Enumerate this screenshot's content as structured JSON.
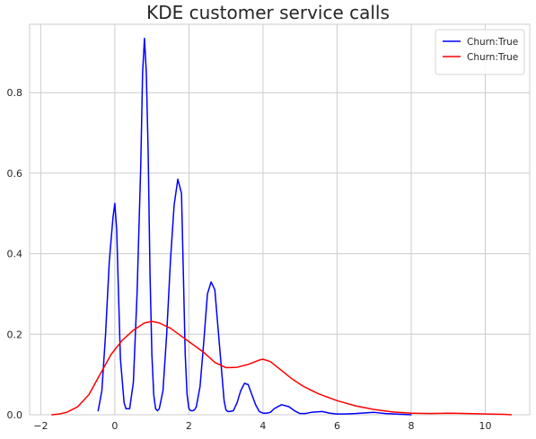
{
  "chart_data": {
    "type": "line",
    "title": "KDE customer service calls",
    "xlabel": "",
    "ylabel": "",
    "xlim": [
      -2.3,
      11.2
    ],
    "ylim": [
      0,
      0.97
    ],
    "x_ticks": [
      -2,
      0,
      2,
      4,
      6,
      8,
      10
    ],
    "x_tick_labels": [
      "−2",
      "0",
      "2",
      "4",
      "6",
      "8",
      "10"
    ],
    "y_ticks": [
      0.0,
      0.2,
      0.4,
      0.6,
      0.8
    ],
    "y_tick_labels": [
      "0.0",
      "0.2",
      "0.4",
      "0.6",
      "0.8"
    ],
    "grid": true,
    "legend_position": "top-right",
    "series": [
      {
        "name": "Churn:True",
        "color": "#0000ff",
        "x": [
          -0.45,
          -0.35,
          -0.25,
          -0.15,
          -0.05,
          0.0,
          0.05,
          0.1,
          0.15,
          0.25,
          0.3,
          0.4,
          0.5,
          0.6,
          0.7,
          0.75,
          0.8,
          0.85,
          0.9,
          0.95,
          1.0,
          1.05,
          1.1,
          1.15,
          1.2,
          1.3,
          1.4,
          1.5,
          1.6,
          1.7,
          1.8,
          1.85,
          1.9,
          1.95,
          2.0,
          2.05,
          2.1,
          2.15,
          2.2,
          2.3,
          2.4,
          2.5,
          2.6,
          2.7,
          2.8,
          2.9,
          2.95,
          3.0,
          3.05,
          3.1,
          3.2,
          3.3,
          3.4,
          3.5,
          3.6,
          3.7,
          3.8,
          3.9,
          4.0,
          4.1,
          4.2,
          4.3,
          4.5,
          4.7,
          4.85,
          5.0,
          5.15,
          5.3,
          5.6,
          5.8,
          6.0,
          6.2,
          6.5,
          7.0,
          7.3,
          8.0
        ],
        "y": [
          0.01,
          0.06,
          0.2,
          0.38,
          0.49,
          0.525,
          0.46,
          0.3,
          0.14,
          0.03,
          0.015,
          0.015,
          0.08,
          0.3,
          0.62,
          0.85,
          0.935,
          0.85,
          0.65,
          0.35,
          0.15,
          0.05,
          0.015,
          0.01,
          0.015,
          0.06,
          0.2,
          0.38,
          0.52,
          0.585,
          0.55,
          0.35,
          0.15,
          0.05,
          0.015,
          0.01,
          0.01,
          0.012,
          0.02,
          0.07,
          0.18,
          0.3,
          0.33,
          0.31,
          0.2,
          0.09,
          0.035,
          0.012,
          0.008,
          0.008,
          0.01,
          0.03,
          0.06,
          0.078,
          0.075,
          0.05,
          0.025,
          0.008,
          0.004,
          0.004,
          0.006,
          0.015,
          0.025,
          0.02,
          0.01,
          0.003,
          0.003,
          0.006,
          0.008,
          0.004,
          0.002,
          0.002,
          0.003,
          0.006,
          0.003,
          0.0
        ],
        "style": "solid"
      },
      {
        "name": "Churn:True",
        "color": "#ff0000",
        "x": [
          -1.7,
          -1.5,
          -1.3,
          -1.0,
          -0.7,
          -0.4,
          -0.1,
          0.2,
          0.5,
          0.8,
          1.0,
          1.2,
          1.5,
          1.8,
          2.1,
          2.4,
          2.7,
          3.0,
          3.3,
          3.6,
          3.9,
          4.0,
          4.2,
          4.5,
          4.8,
          5.1,
          5.5,
          6.0,
          6.5,
          7.0,
          7.5,
          8.0,
          8.5,
          9.0,
          9.5,
          10.0,
          10.5,
          10.7
        ],
        "y": [
          0.0,
          0.002,
          0.006,
          0.02,
          0.05,
          0.1,
          0.15,
          0.185,
          0.21,
          0.228,
          0.232,
          0.228,
          0.215,
          0.195,
          0.175,
          0.155,
          0.13,
          0.117,
          0.118,
          0.125,
          0.136,
          0.138,
          0.132,
          0.11,
          0.088,
          0.07,
          0.052,
          0.035,
          0.022,
          0.013,
          0.007,
          0.004,
          0.003,
          0.004,
          0.003,
          0.002,
          0.001,
          0.0
        ],
        "style": "solid"
      }
    ]
  }
}
